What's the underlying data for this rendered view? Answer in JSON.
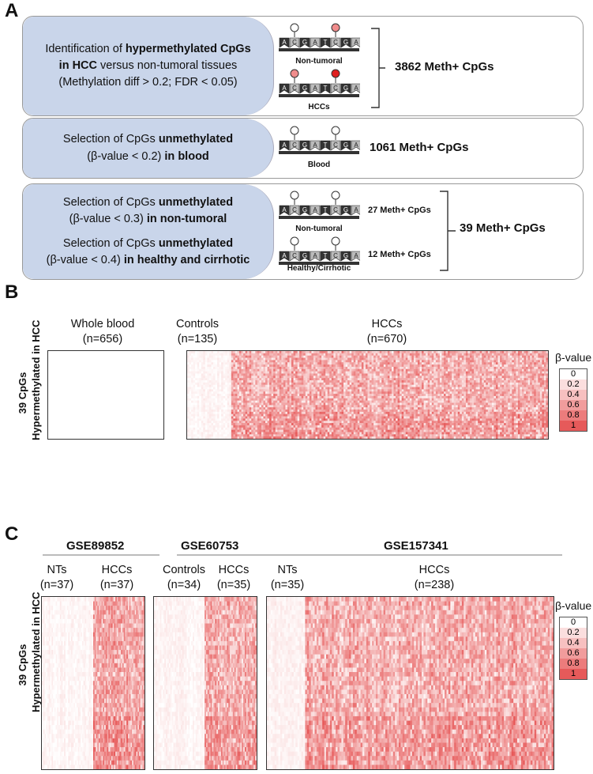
{
  "panel_a": {
    "letter": "A",
    "box1": {
      "pre": "Identification of ",
      "b1": "hypermethylated CpGs",
      "b2": "in HCC",
      "post": " versus non-tumoral tissues",
      "criteria": "(Methylation diff > 0.2; FDR < 0.05)",
      "label_top": "Non-tumoral",
      "label_bottom": "HCCs",
      "count": "3862 Meth+ CpGs"
    },
    "box2": {
      "line1": "Selection of CpGs ",
      "line1_bold": "unmethylated",
      "line2": "(β-value < 0.2) ",
      "line2_bold": "in blood",
      "label": "Blood",
      "count": "1061 Meth+ CpGs"
    },
    "box3": {
      "s1_line1": "Selection of CpGs ",
      "s1_line1_bold": "unmethylated",
      "s1_line2": "(β-value < 0.3) ",
      "s1_line2_bold": "in non-tumoral",
      "s2_line1": "Selection of CpGs ",
      "s2_line1_bold": "unmethylated",
      "s2_line2": "(β-value < 0.4) ",
      "s2_line2_bold": "in healthy and cirrhotic",
      "label_top": "Non-tumoral",
      "label_bottom": "Healthy/Cirrhotic",
      "count_top": "27 Meth+ CpGs",
      "count_bottom": "12 Meth+ CpGs",
      "count_total": "39 Meth+ CpGs"
    },
    "dna_letters": [
      "A",
      "C",
      "G",
      "A",
      "T",
      "C",
      "G",
      "A"
    ]
  },
  "panel_b": {
    "letter": "B",
    "groups": [
      {
        "name": "Whole blood",
        "n": "(n=656)"
      },
      {
        "name": "Controls",
        "n": "(n=135)"
      },
      {
        "name": "HCCs",
        "n": "(n=670)"
      }
    ],
    "ylabel_1": "39 CpGs",
    "ylabel_2": "Hypermethylated in HCC"
  },
  "panel_c": {
    "letter": "C",
    "datasets": [
      {
        "name": "GSE89852",
        "g1": "NTs",
        "n1": "(n=37)",
        "g2": "HCCs",
        "n2": "(n=37)"
      },
      {
        "name": "GSE60753",
        "g1": "Controls",
        "n1": "(n=34)",
        "g2": "HCCs",
        "n2": "(n=35)"
      },
      {
        "name": "GSE157341",
        "g1": "NTs",
        "n1": "(n=35)",
        "g2": "HCCs",
        "n2": "(n=238)"
      }
    ],
    "ylabel_1": "39 CpGs",
    "ylabel_2": "Hypermethylated in HCC"
  },
  "legend": {
    "title": "β-value",
    "ticks": [
      "0",
      "0.2",
      "0.4",
      "0.6",
      "0.8",
      "1"
    ],
    "colors": [
      "#ffffff",
      "#fbdede",
      "#f7c0c0",
      "#f19c9c",
      "#ec7c7c",
      "#e65a5a"
    ]
  }
}
